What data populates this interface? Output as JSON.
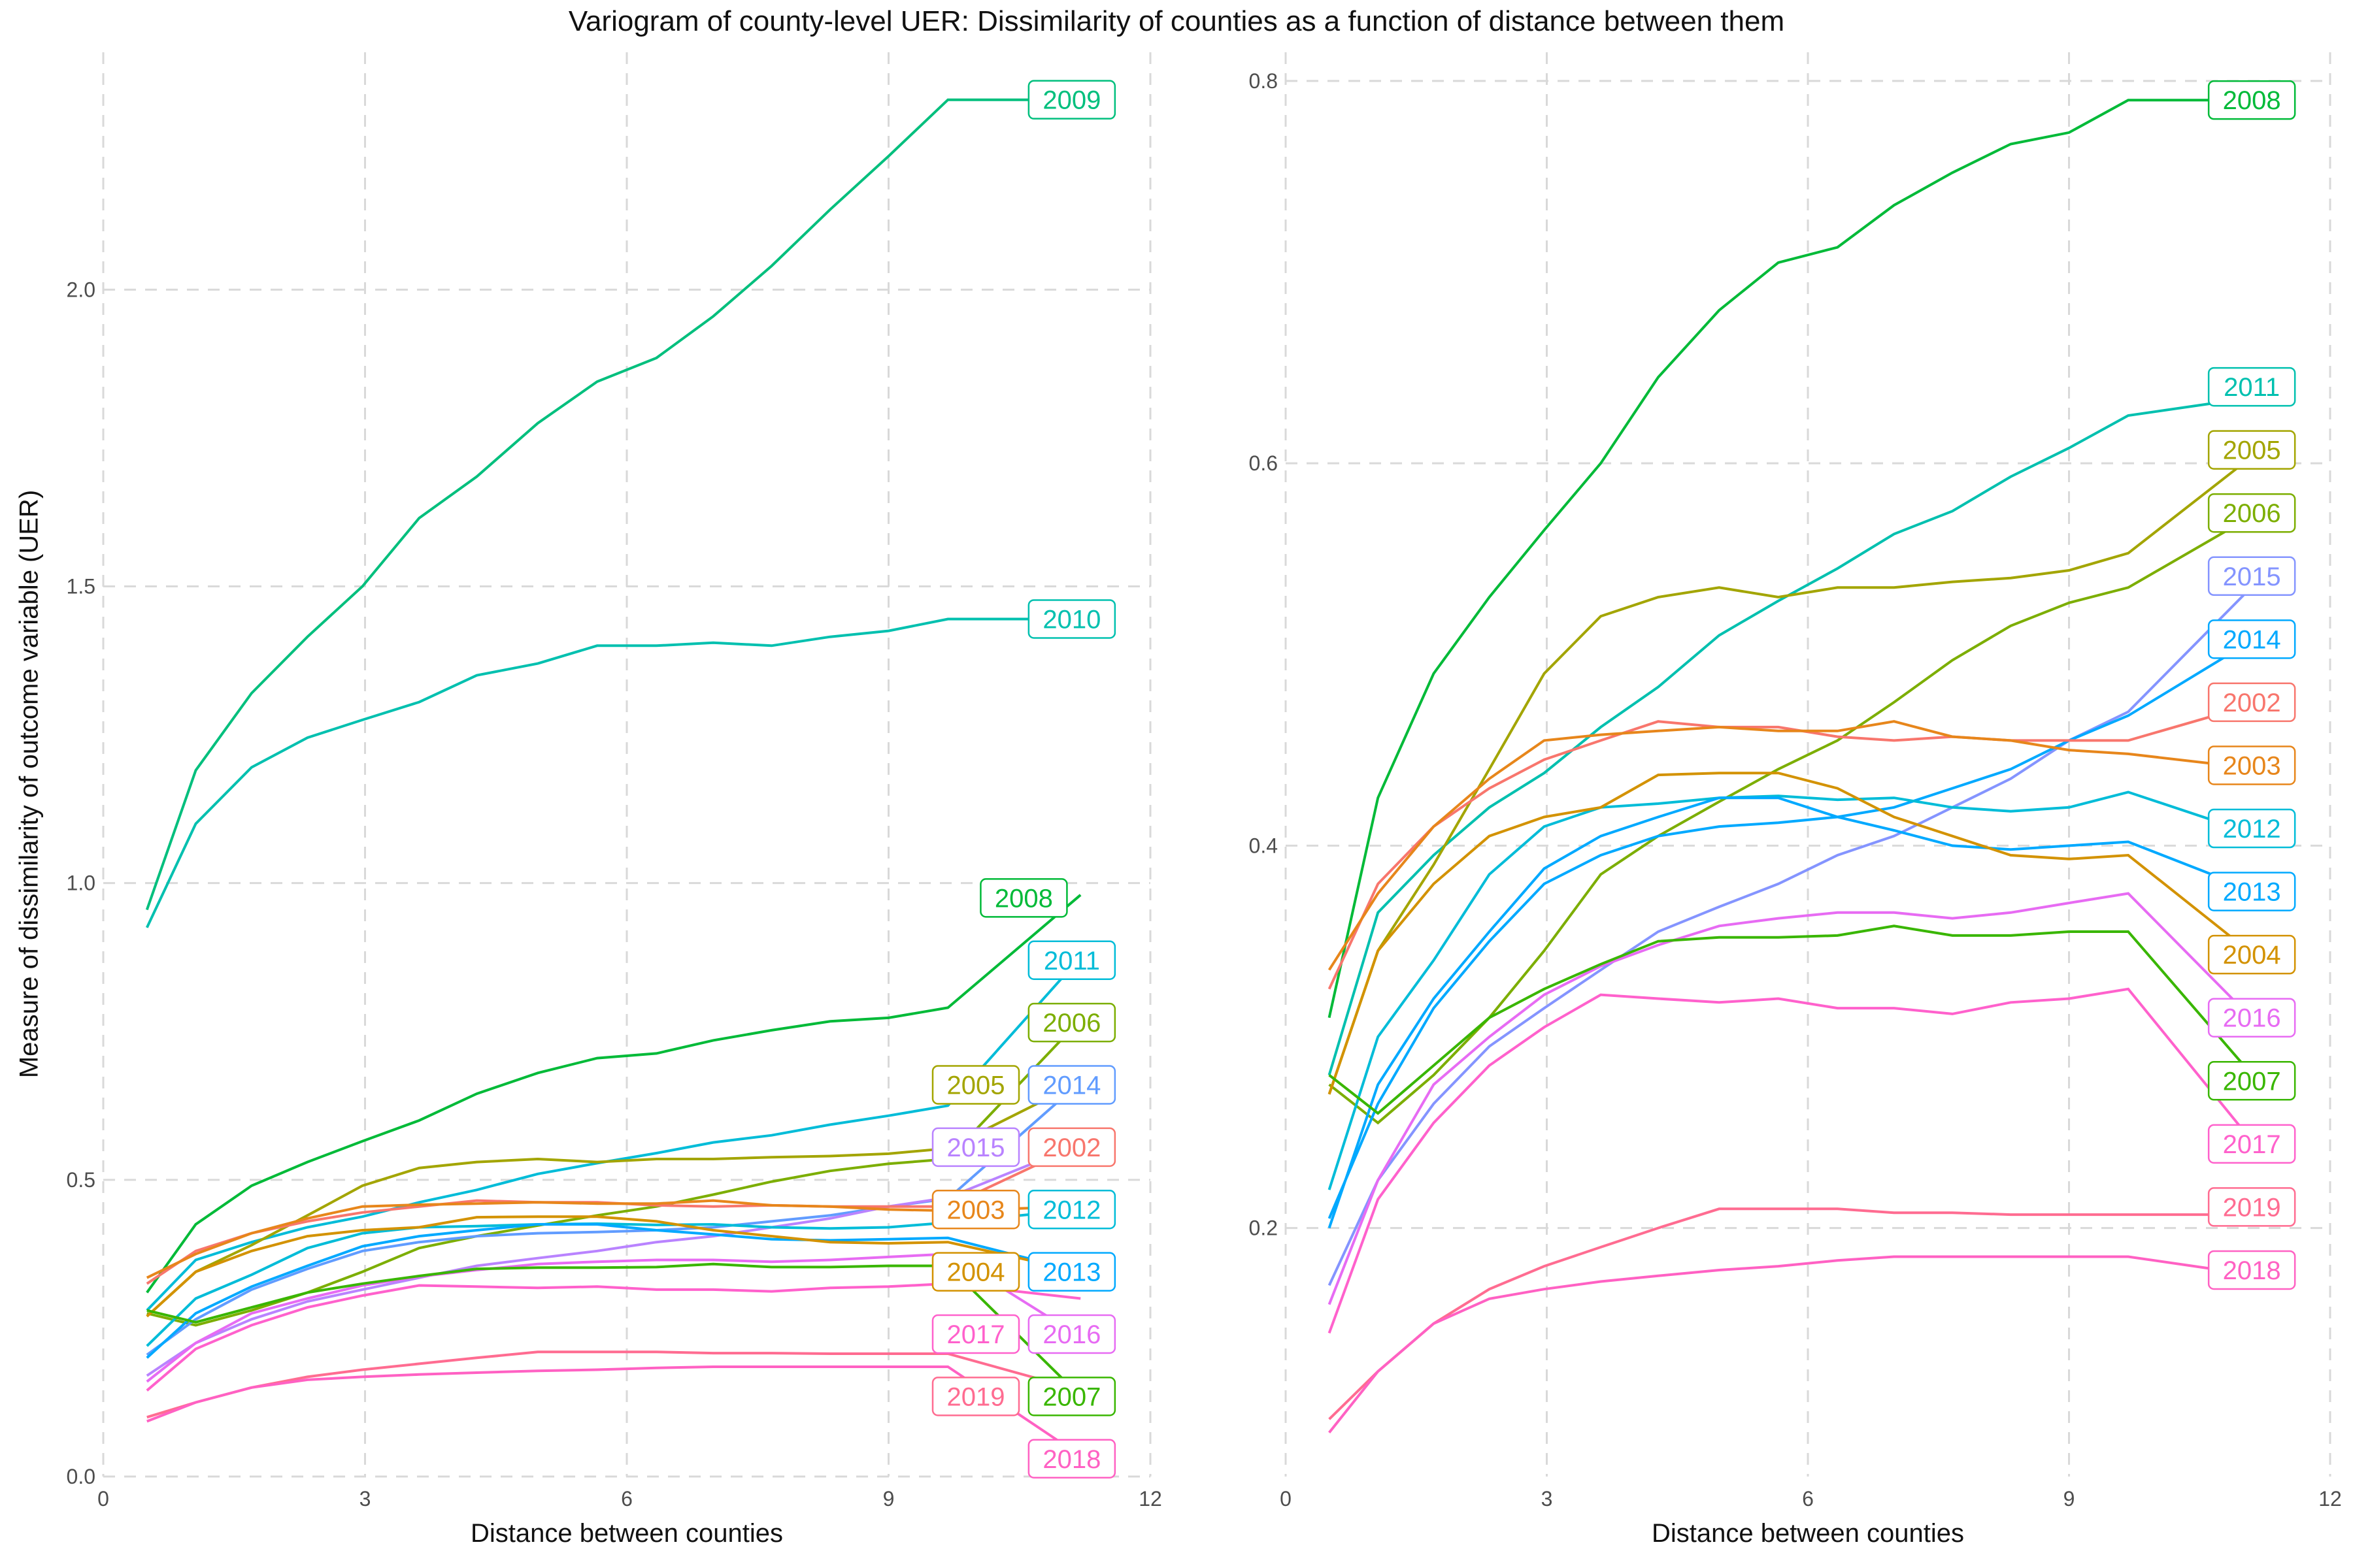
{
  "title": "Variogram of county-level UER: Dissimilarity of counties as a function of distance between them",
  "ylabel": "Measure of dissimilarity of outcome variable (UER)",
  "chart_data": [
    {
      "type": "line",
      "xlabel": "Distance between counties",
      "xlim": [
        0,
        12
      ],
      "ylim": [
        0,
        2.4
      ],
      "xticks": [
        0,
        3,
        6,
        9,
        12
      ],
      "yticks": [
        0.0,
        0.5,
        1.0,
        1.5,
        2.0
      ],
      "ytick_labels": [
        "0.0",
        "0.5",
        "1.0",
        "1.5",
        "2.0"
      ],
      "grid": true,
      "x": [
        0.5,
        1.06,
        1.7,
        2.34,
        2.97,
        3.62,
        4.28,
        4.98,
        5.66,
        6.34,
        6.99,
        7.66,
        8.33,
        9.0,
        9.68,
        11.2
      ],
      "series": [
        {
          "name": "2009",
          "color": "#00BF7D",
          "values": [
            0.955,
            1.19,
            1.32,
            1.415,
            1.5,
            1.615,
            1.685,
            1.775,
            1.845,
            1.885,
            1.955,
            2.04,
            2.135,
            2.225,
            2.32,
            2.32
          ]
        },
        {
          "name": "2010",
          "color": "#00C0AF",
          "values": [
            0.925,
            1.1,
            1.195,
            1.245,
            1.275,
            1.305,
            1.35,
            1.37,
            1.4,
            1.4,
            1.405,
            1.4,
            1.415,
            1.425,
            1.445,
            1.445
          ]
        },
        {
          "name": "2008",
          "color": "#00BA38",
          "values": [
            0.31,
            0.425,
            0.49,
            0.53,
            0.565,
            0.6,
            0.645,
            0.68,
            0.705,
            0.713,
            0.735,
            0.752,
            0.767,
            0.773,
            0.79,
            0.98
          ]
        },
        {
          "name": "2011",
          "color": "#00BCD8",
          "values": [
            0.28,
            0.365,
            0.395,
            0.42,
            0.438,
            0.462,
            0.483,
            0.51,
            0.528,
            0.545,
            0.563,
            0.575,
            0.593,
            0.608,
            0.625,
            0.875
          ]
        },
        {
          "name": "2006",
          "color": "#7CAE00",
          "values": [
            0.275,
            0.255,
            0.28,
            0.31,
            0.345,
            0.385,
            0.405,
            0.423,
            0.44,
            0.455,
            0.475,
            0.497,
            0.515,
            0.527,
            0.535,
            0.77
          ]
        },
        {
          "name": "2005",
          "color": "#A3A500",
          "values": [
            0.27,
            0.345,
            0.39,
            0.44,
            0.49,
            0.52,
            0.53,
            0.535,
            0.53,
            0.535,
            0.535,
            0.538,
            0.54,
            0.544,
            0.553,
            0.665
          ]
        },
        {
          "name": "2014",
          "color": "#619CFF",
          "values": [
            0.205,
            0.265,
            0.315,
            0.35,
            0.38,
            0.395,
            0.405,
            0.41,
            0.412,
            0.415,
            0.42,
            0.43,
            0.44,
            0.455,
            0.468,
            0.665
          ]
        },
        {
          "name": "2015",
          "color": "#B983FF",
          "values": [
            0.17,
            0.225,
            0.265,
            0.295,
            0.315,
            0.335,
            0.355,
            0.368,
            0.38,
            0.395,
            0.405,
            0.42,
            0.435,
            0.455,
            0.47,
            0.56
          ]
        },
        {
          "name": "2002",
          "color": "#F8766D",
          "values": [
            0.325,
            0.38,
            0.41,
            0.43,
            0.445,
            0.455,
            0.465,
            0.462,
            0.462,
            0.457,
            0.455,
            0.457,
            0.455,
            0.455,
            0.455,
            0.56
          ]
        },
        {
          "name": "2003",
          "color": "#E7861B",
          "values": [
            0.335,
            0.375,
            0.41,
            0.435,
            0.455,
            0.458,
            0.46,
            0.462,
            0.46,
            0.46,
            0.465,
            0.457,
            0.455,
            0.45,
            0.448,
            0.455
          ]
        },
        {
          "name": "2012",
          "color": "#00BCD8",
          "values": [
            0.22,
            0.3,
            0.34,
            0.385,
            0.41,
            0.42,
            0.422,
            0.425,
            0.426,
            0.424,
            0.425,
            0.42,
            0.418,
            0.42,
            0.428,
            0.45
          ]
        },
        {
          "name": "2013",
          "color": "#00A9FF",
          "values": [
            0.2,
            0.275,
            0.32,
            0.355,
            0.388,
            0.405,
            0.415,
            0.425,
            0.425,
            0.415,
            0.408,
            0.4,
            0.398,
            0.4,
            0.402,
            0.345
          ]
        },
        {
          "name": "2004",
          "color": "#D39200",
          "values": [
            0.27,
            0.345,
            0.38,
            0.405,
            0.415,
            0.42,
            0.437,
            0.438,
            0.438,
            0.43,
            0.415,
            0.405,
            0.395,
            0.393,
            0.395,
            0.345
          ]
        },
        {
          "name": "2016",
          "color": "#E76BF3",
          "values": [
            0.16,
            0.225,
            0.275,
            0.3,
            0.322,
            0.337,
            0.348,
            0.358,
            0.362,
            0.365,
            0.365,
            0.362,
            0.365,
            0.37,
            0.375,
            0.235
          ]
        },
        {
          "name": "2017",
          "color": "#FF61CC",
          "values": [
            0.145,
            0.215,
            0.255,
            0.285,
            0.305,
            0.322,
            0.32,
            0.318,
            0.32,
            0.315,
            0.315,
            0.312,
            0.318,
            0.32,
            0.325,
            0.3
          ]
        },
        {
          "name": "2007",
          "color": "#39B600",
          "values": [
            0.28,
            0.26,
            0.285,
            0.31,
            0.325,
            0.338,
            0.35,
            0.352,
            0.352,
            0.353,
            0.358,
            0.353,
            0.353,
            0.355,
            0.355,
            0.135
          ]
        },
        {
          "name": "2019",
          "color": "#FF6C91",
          "values": [
            0.1,
            0.125,
            0.15,
            0.168,
            0.18,
            0.19,
            0.2,
            0.21,
            0.21,
            0.21,
            0.208,
            0.208,
            0.207,
            0.207,
            0.207,
            0.145
          ]
        },
        {
          "name": "2018",
          "color": "#FF61C3",
          "values": [
            0.093,
            0.125,
            0.15,
            0.163,
            0.168,
            0.172,
            0.175,
            0.178,
            0.18,
            0.183,
            0.185,
            0.185,
            0.185,
            0.185,
            0.185,
            0.035
          ]
        }
      ],
      "end_labels": [
        {
          "name": "2009",
          "color": "#00BF7D",
          "x": 11.1,
          "y": 2.32
        },
        {
          "name": "2010",
          "color": "#00C0AF",
          "x": 11.1,
          "y": 1.445
        },
        {
          "name": "2008",
          "color": "#00BA38",
          "x": 10.55,
          "y": 0.975
        },
        {
          "name": "2011",
          "color": "#00BCD8",
          "x": 11.1,
          "y": 0.87
        },
        {
          "name": "2006",
          "color": "#7CAE00",
          "x": 11.1,
          "y": 0.765
        },
        {
          "name": "2005",
          "color": "#A3A500",
          "x": 10.0,
          "y": 0.66
        },
        {
          "name": "2014",
          "color": "#619CFF",
          "x": 11.1,
          "y": 0.66
        },
        {
          "name": "2015",
          "color": "#B983FF",
          "x": 10.0,
          "y": 0.555
        },
        {
          "name": "2002",
          "color": "#F8766D",
          "x": 11.1,
          "y": 0.555
        },
        {
          "name": "2003",
          "color": "#E7861B",
          "x": 10.0,
          "y": 0.45
        },
        {
          "name": "2012",
          "color": "#00BCD8",
          "x": 11.1,
          "y": 0.45
        },
        {
          "name": "2004",
          "color": "#D39200",
          "x": 10.0,
          "y": 0.345
        },
        {
          "name": "2013",
          "color": "#00A9FF",
          "x": 11.1,
          "y": 0.345
        },
        {
          "name": "2017",
          "color": "#FF61CC",
          "x": 10.0,
          "y": 0.24
        },
        {
          "name": "2016",
          "color": "#E76BF3",
          "x": 11.1,
          "y": 0.24
        },
        {
          "name": "2019",
          "color": "#FF6C91",
          "x": 10.0,
          "y": 0.135
        },
        {
          "name": "2007",
          "color": "#39B600",
          "x": 11.1,
          "y": 0.135
        },
        {
          "name": "2018",
          "color": "#FF61C3",
          "x": 11.1,
          "y": 0.03
        }
      ]
    },
    {
      "type": "line",
      "xlabel": "Distance between counties",
      "xlim": [
        0,
        12
      ],
      "ylim": [
        0.07,
        0.815
      ],
      "xticks": [
        0,
        3,
        6,
        9,
        12
      ],
      "yticks": [
        0.2,
        0.4,
        0.6,
        0.8
      ],
      "ytick_labels": [
        "0.2",
        "0.4",
        "0.6",
        "0.8"
      ],
      "grid": true,
      "x": [
        0.5,
        1.06,
        1.7,
        2.34,
        2.97,
        3.62,
        4.28,
        4.98,
        5.66,
        6.34,
        6.99,
        7.66,
        8.33,
        9.0,
        9.68,
        11.2
      ],
      "series": [
        {
          "name": "2008",
          "color": "#00BA38",
          "values": [
            0.31,
            0.425,
            0.49,
            0.53,
            0.565,
            0.6,
            0.645,
            0.68,
            0.705,
            0.713,
            0.735,
            0.752,
            0.767,
            0.773,
            0.79,
            0.79
          ]
        },
        {
          "name": "2011",
          "color": "#00C0AF",
          "values": [
            0.28,
            0.365,
            0.395,
            0.42,
            0.438,
            0.462,
            0.483,
            0.51,
            0.528,
            0.545,
            0.563,
            0.575,
            0.593,
            0.608,
            0.625,
            0.635
          ]
        },
        {
          "name": "2005",
          "color": "#A3A500",
          "values": [
            0.27,
            0.345,
            0.39,
            0.44,
            0.49,
            0.52,
            0.53,
            0.535,
            0.53,
            0.535,
            0.535,
            0.538,
            0.54,
            0.544,
            0.553,
            0.607
          ]
        },
        {
          "name": "2006",
          "color": "#7CAE00",
          "values": [
            0.275,
            0.255,
            0.28,
            0.31,
            0.345,
            0.385,
            0.405,
            0.423,
            0.44,
            0.455,
            0.475,
            0.497,
            0.515,
            0.527,
            0.535,
            0.575
          ]
        },
        {
          "name": "2015",
          "color": "#8494FF",
          "values": [
            0.17,
            0.225,
            0.265,
            0.295,
            0.315,
            0.335,
            0.355,
            0.368,
            0.38,
            0.395,
            0.405,
            0.42,
            0.435,
            0.455,
            0.47,
            0.54
          ]
        },
        {
          "name": "2014",
          "color": "#00A9FF",
          "values": [
            0.205,
            0.265,
            0.315,
            0.35,
            0.38,
            0.395,
            0.405,
            0.41,
            0.412,
            0.415,
            0.42,
            0.43,
            0.44,
            0.455,
            0.468,
            0.51
          ]
        },
        {
          "name": "2002",
          "color": "#F8766D",
          "values": [
            0.325,
            0.38,
            0.41,
            0.43,
            0.445,
            0.455,
            0.465,
            0.462,
            0.462,
            0.457,
            0.455,
            0.457,
            0.455,
            0.455,
            0.455,
            0.475
          ]
        },
        {
          "name": "2003",
          "color": "#E7861B",
          "values": [
            0.335,
            0.375,
            0.41,
            0.435,
            0.455,
            0.458,
            0.46,
            0.462,
            0.46,
            0.46,
            0.465,
            0.457,
            0.455,
            0.45,
            0.448,
            0.44
          ]
        },
        {
          "name": "2012",
          "color": "#00BCD8",
          "values": [
            0.22,
            0.3,
            0.34,
            0.385,
            0.41,
            0.42,
            0.422,
            0.425,
            0.426,
            0.424,
            0.425,
            0.42,
            0.418,
            0.42,
            0.428,
            0.405
          ]
        },
        {
          "name": "2013",
          "color": "#00A9FF",
          "values": [
            0.2,
            0.275,
            0.32,
            0.355,
            0.388,
            0.405,
            0.415,
            0.425,
            0.425,
            0.415,
            0.408,
            0.4,
            0.398,
            0.4,
            0.402,
            0.375
          ]
        },
        {
          "name": "2004",
          "color": "#D39200",
          "values": [
            0.27,
            0.345,
            0.38,
            0.405,
            0.415,
            0.42,
            0.437,
            0.438,
            0.438,
            0.43,
            0.415,
            0.405,
            0.395,
            0.393,
            0.395,
            0.34
          ]
        },
        {
          "name": "2016",
          "color": "#E76BF3",
          "values": [
            0.16,
            0.225,
            0.275,
            0.3,
            0.322,
            0.337,
            0.348,
            0.358,
            0.362,
            0.365,
            0.365,
            0.362,
            0.365,
            0.37,
            0.375,
            0.305
          ]
        },
        {
          "name": "2007",
          "color": "#39B600",
          "values": [
            0.28,
            0.26,
            0.285,
            0.31,
            0.325,
            0.338,
            0.35,
            0.352,
            0.352,
            0.353,
            0.358,
            0.353,
            0.353,
            0.355,
            0.355,
            0.275
          ]
        },
        {
          "name": "2017",
          "color": "#FF61CC",
          "values": [
            0.145,
            0.215,
            0.255,
            0.285,
            0.305,
            0.322,
            0.32,
            0.318,
            0.32,
            0.315,
            0.315,
            0.312,
            0.318,
            0.32,
            0.325,
            0.24
          ]
        },
        {
          "name": "2019",
          "color": "#FF6C91",
          "values": [
            0.1,
            0.125,
            0.15,
            0.168,
            0.18,
            0.19,
            0.2,
            0.21,
            0.21,
            0.21,
            0.208,
            0.208,
            0.207,
            0.207,
            0.207,
            0.207
          ]
        },
        {
          "name": "2018",
          "color": "#FF61C3",
          "values": [
            0.093,
            0.125,
            0.15,
            0.163,
            0.168,
            0.172,
            0.175,
            0.178,
            0.18,
            0.183,
            0.185,
            0.185,
            0.185,
            0.185,
            0.185,
            0.175
          ]
        }
      ],
      "end_labels": [
        {
          "name": "2008",
          "color": "#00BA38",
          "x": 11.1,
          "y": 0.79
        },
        {
          "name": "2011",
          "color": "#00C0AF",
          "x": 11.1,
          "y": 0.64
        },
        {
          "name": "2005",
          "color": "#A3A500",
          "x": 11.1,
          "y": 0.607
        },
        {
          "name": "2006",
          "color": "#7CAE00",
          "x": 11.1,
          "y": 0.574
        },
        {
          "name": "2015",
          "color": "#8494FF",
          "x": 11.1,
          "y": 0.541
        },
        {
          "name": "2014",
          "color": "#00A9FF",
          "x": 11.1,
          "y": 0.508
        },
        {
          "name": "2002",
          "color": "#F8766D",
          "x": 11.1,
          "y": 0.475
        },
        {
          "name": "2003",
          "color": "#E7861B",
          "x": 11.1,
          "y": 0.442
        },
        {
          "name": "2012",
          "color": "#00BCD8",
          "x": 11.1,
          "y": 0.409
        },
        {
          "name": "2013",
          "color": "#00A9FF",
          "x": 11.1,
          "y": 0.376
        },
        {
          "name": "2004",
          "color": "#D39200",
          "x": 11.1,
          "y": 0.343
        },
        {
          "name": "2016",
          "color": "#E76BF3",
          "x": 11.1,
          "y": 0.31
        },
        {
          "name": "2007",
          "color": "#39B600",
          "x": 11.1,
          "y": 0.277
        },
        {
          "name": "2017",
          "color": "#FF61CC",
          "x": 11.1,
          "y": 0.244
        },
        {
          "name": "2019",
          "color": "#FF6C91",
          "x": 11.1,
          "y": 0.211
        },
        {
          "name": "2018",
          "color": "#FF61C3",
          "x": 11.1,
          "y": 0.178
        }
      ]
    }
  ]
}
